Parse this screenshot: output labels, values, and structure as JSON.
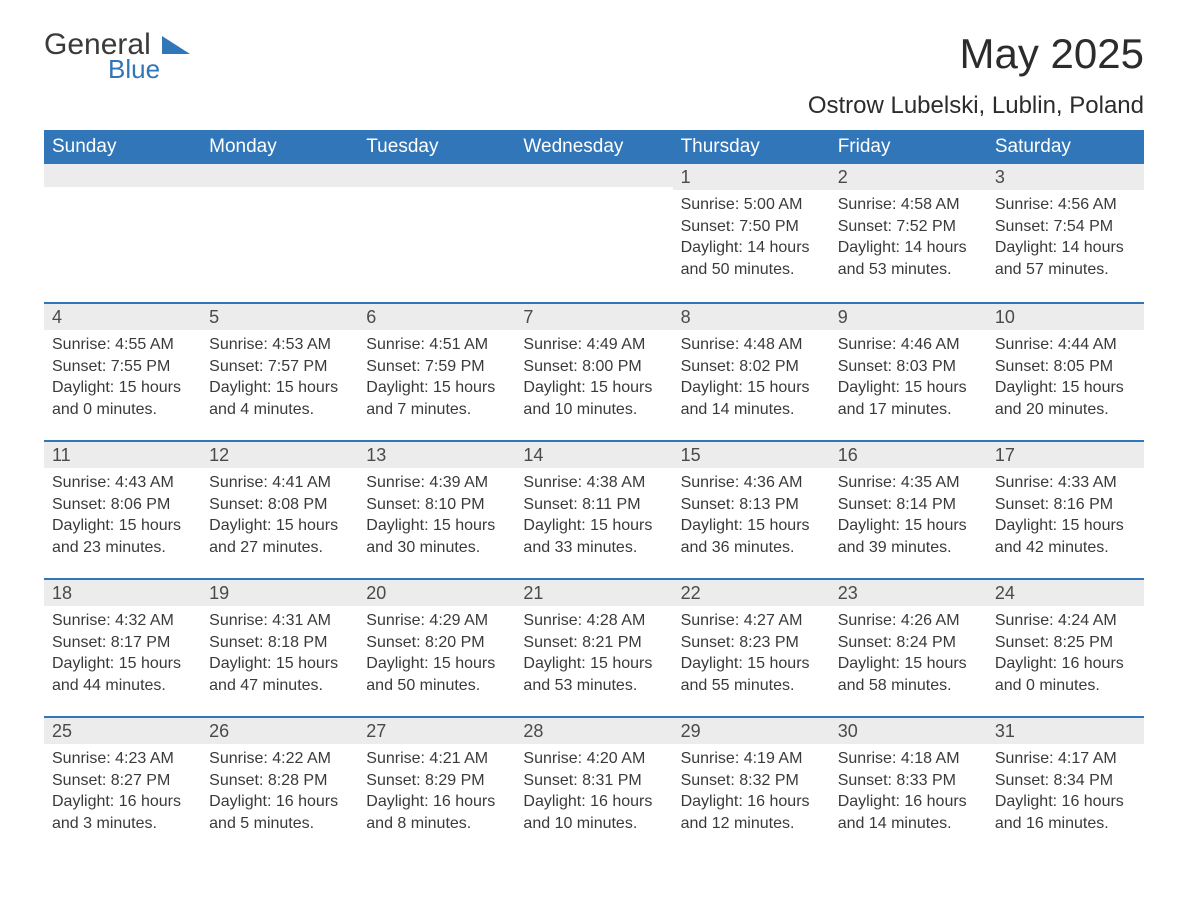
{
  "brand": {
    "name": "General",
    "sub": "Blue",
    "accent": "#3176b8"
  },
  "title": "May 2025",
  "location": "Ostrow Lubelski, Lublin, Poland",
  "header_bg": "#3176b8",
  "daynum_bg": "#ececec",
  "text_color": "#3a3a3a",
  "day_labels": [
    "Sunday",
    "Monday",
    "Tuesday",
    "Wednesday",
    "Thursday",
    "Friday",
    "Saturday"
  ],
  "weeks": [
    [
      null,
      null,
      null,
      null,
      {
        "n": "1",
        "sr": "5:00 AM",
        "ss": "7:50 PM",
        "dl": "14 hours and 50 minutes."
      },
      {
        "n": "2",
        "sr": "4:58 AM",
        "ss": "7:52 PM",
        "dl": "14 hours and 53 minutes."
      },
      {
        "n": "3",
        "sr": "4:56 AM",
        "ss": "7:54 PM",
        "dl": "14 hours and 57 minutes."
      }
    ],
    [
      {
        "n": "4",
        "sr": "4:55 AM",
        "ss": "7:55 PM",
        "dl": "15 hours and 0 minutes."
      },
      {
        "n": "5",
        "sr": "4:53 AM",
        "ss": "7:57 PM",
        "dl": "15 hours and 4 minutes."
      },
      {
        "n": "6",
        "sr": "4:51 AM",
        "ss": "7:59 PM",
        "dl": "15 hours and 7 minutes."
      },
      {
        "n": "7",
        "sr": "4:49 AM",
        "ss": "8:00 PM",
        "dl": "15 hours and 10 minutes."
      },
      {
        "n": "8",
        "sr": "4:48 AM",
        "ss": "8:02 PM",
        "dl": "15 hours and 14 minutes."
      },
      {
        "n": "9",
        "sr": "4:46 AM",
        "ss": "8:03 PM",
        "dl": "15 hours and 17 minutes."
      },
      {
        "n": "10",
        "sr": "4:44 AM",
        "ss": "8:05 PM",
        "dl": "15 hours and 20 minutes."
      }
    ],
    [
      {
        "n": "11",
        "sr": "4:43 AM",
        "ss": "8:06 PM",
        "dl": "15 hours and 23 minutes."
      },
      {
        "n": "12",
        "sr": "4:41 AM",
        "ss": "8:08 PM",
        "dl": "15 hours and 27 minutes."
      },
      {
        "n": "13",
        "sr": "4:39 AM",
        "ss": "8:10 PM",
        "dl": "15 hours and 30 minutes."
      },
      {
        "n": "14",
        "sr": "4:38 AM",
        "ss": "8:11 PM",
        "dl": "15 hours and 33 minutes."
      },
      {
        "n": "15",
        "sr": "4:36 AM",
        "ss": "8:13 PM",
        "dl": "15 hours and 36 minutes."
      },
      {
        "n": "16",
        "sr": "4:35 AM",
        "ss": "8:14 PM",
        "dl": "15 hours and 39 minutes."
      },
      {
        "n": "17",
        "sr": "4:33 AM",
        "ss": "8:16 PM",
        "dl": "15 hours and 42 minutes."
      }
    ],
    [
      {
        "n": "18",
        "sr": "4:32 AM",
        "ss": "8:17 PM",
        "dl": "15 hours and 44 minutes."
      },
      {
        "n": "19",
        "sr": "4:31 AM",
        "ss": "8:18 PM",
        "dl": "15 hours and 47 minutes."
      },
      {
        "n": "20",
        "sr": "4:29 AM",
        "ss": "8:20 PM",
        "dl": "15 hours and 50 minutes."
      },
      {
        "n": "21",
        "sr": "4:28 AM",
        "ss": "8:21 PM",
        "dl": "15 hours and 53 minutes."
      },
      {
        "n": "22",
        "sr": "4:27 AM",
        "ss": "8:23 PM",
        "dl": "15 hours and 55 minutes."
      },
      {
        "n": "23",
        "sr": "4:26 AM",
        "ss": "8:24 PM",
        "dl": "15 hours and 58 minutes."
      },
      {
        "n": "24",
        "sr": "4:24 AM",
        "ss": "8:25 PM",
        "dl": "16 hours and 0 minutes."
      }
    ],
    [
      {
        "n": "25",
        "sr": "4:23 AM",
        "ss": "8:27 PM",
        "dl": "16 hours and 3 minutes."
      },
      {
        "n": "26",
        "sr": "4:22 AM",
        "ss": "8:28 PM",
        "dl": "16 hours and 5 minutes."
      },
      {
        "n": "27",
        "sr": "4:21 AM",
        "ss": "8:29 PM",
        "dl": "16 hours and 8 minutes."
      },
      {
        "n": "28",
        "sr": "4:20 AM",
        "ss": "8:31 PM",
        "dl": "16 hours and 10 minutes."
      },
      {
        "n": "29",
        "sr": "4:19 AM",
        "ss": "8:32 PM",
        "dl": "16 hours and 12 minutes."
      },
      {
        "n": "30",
        "sr": "4:18 AM",
        "ss": "8:33 PM",
        "dl": "16 hours and 14 minutes."
      },
      {
        "n": "31",
        "sr": "4:17 AM",
        "ss": "8:34 PM",
        "dl": "16 hours and 16 minutes."
      }
    ]
  ],
  "labels": {
    "sunrise": "Sunrise:",
    "sunset": "Sunset:",
    "daylight": "Daylight:"
  }
}
